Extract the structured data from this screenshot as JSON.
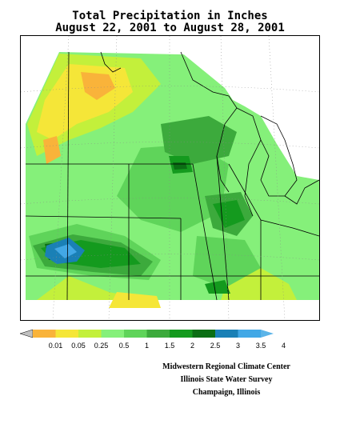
{
  "title": {
    "line1": "Total Precipitation in Inches",
    "line2": "August 22, 2001 to August 28, 2001"
  },
  "legend": {
    "ticks": [
      "0.01",
      "0.05",
      "0.25",
      "0.5",
      "1",
      "1.5",
      "2",
      "2.5",
      "3",
      "3.5",
      "4"
    ],
    "colors": [
      "#c0c0c0",
      "#f9b33a",
      "#f5e638",
      "#c3f03b",
      "#85f07a",
      "#5fd45a",
      "#3caa3c",
      "#149a1e",
      "#0b6e14",
      "#1a80b6",
      "#42a8e6",
      "#5bb4e8"
    ]
  },
  "credits": {
    "line1": "Midwestern Regional Climate Center",
    "line2": "Illinois State Water Survey",
    "line3": "Champaign, Illinois"
  }
}
